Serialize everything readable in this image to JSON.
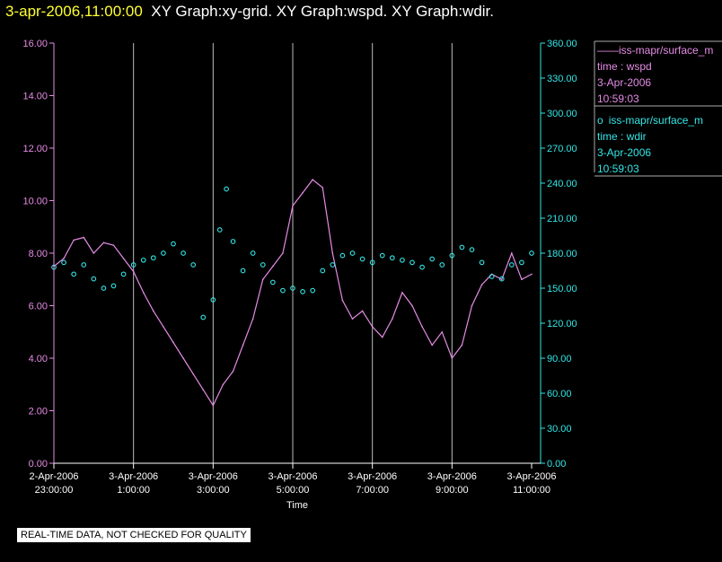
{
  "header": {
    "timestamp": "3-apr-2006,11:00:00",
    "graphs": "XY Graph:xy-grid.  XY Graph:wspd.  XY Graph:wdir."
  },
  "colors": {
    "wspd": "#e58be5",
    "wdir": "#33e6e6",
    "grid": "#bbbbbb",
    "axis_text": "#ffffff",
    "title_time": "#ffff33"
  },
  "legend": [
    {
      "symbol": "——",
      "series": "iss-mapr/surface_m",
      "line1": "time : wspd",
      "line2": "3-Apr-2006",
      "line3": "10:59:03",
      "color": "#e58be5"
    },
    {
      "symbol": "o",
      "series": "iss-mapr/surface_m",
      "line1": "time : wdir",
      "line2": "3-Apr-2006",
      "line3": "10:59:03",
      "color": "#33e6e6"
    }
  ],
  "footer_note": "REAL-TIME DATA, NOT CHECKED FOR QUALITY",
  "chart_data": {
    "type": "line",
    "xlabel": "Time",
    "xlim": [
      "2006-04-02 23:00",
      "2006-04-03 11:00"
    ],
    "x_tick_labels": [
      [
        "2-Apr-2006",
        "23:00:00"
      ],
      [
        "3-Apr-2006",
        "1:00:00"
      ],
      [
        "3-Apr-2006",
        "3:00:00"
      ],
      [
        "3-Apr-2006",
        "5:00:00"
      ],
      [
        "3-Apr-2006",
        "7:00:00"
      ],
      [
        "3-Apr-2006",
        "9:00:00"
      ],
      [
        "3-Apr-2006",
        "11:00:00"
      ]
    ],
    "y_left": {
      "ylim": [
        0,
        16
      ],
      "ticks": [
        "0.00",
        "2.00",
        "4.00",
        "6.00",
        "8.00",
        "10.00",
        "12.00",
        "14.00",
        "16.00"
      ]
    },
    "y_right": {
      "ylim": [
        0,
        360
      ],
      "ticks": [
        "0.00",
        "30.00",
        "60.00",
        "90.00",
        "120.00",
        "150.00",
        "180.00",
        "210.00",
        "240.00",
        "270.00",
        "300.00",
        "330.00",
        "360.00"
      ]
    },
    "grid": "vertical",
    "legend_position": "right",
    "series": [
      {
        "name": "wspd",
        "style": "line",
        "axis": "left",
        "x": [
          "2006-04-02 23:00",
          "2006-04-02 23:15",
          "2006-04-02 23:30",
          "2006-04-02 23:45",
          "2006-04-03 00:00",
          "2006-04-03 00:15",
          "2006-04-03 00:30",
          "2006-04-03 00:45",
          "2006-04-03 01:00",
          "2006-04-03 01:15",
          "2006-04-03 01:30",
          "2006-04-03 01:45",
          "2006-04-03 02:00",
          "2006-04-03 02:15",
          "2006-04-03 02:30",
          "2006-04-03 02:45",
          "2006-04-03 03:00",
          "2006-04-03 03:15",
          "2006-04-03 03:30",
          "2006-04-03 03:45",
          "2006-04-03 04:00",
          "2006-04-03 04:15",
          "2006-04-03 04:30",
          "2006-04-03 04:45",
          "2006-04-03 05:00",
          "2006-04-03 05:15",
          "2006-04-03 05:30",
          "2006-04-03 05:45",
          "2006-04-03 06:00",
          "2006-04-03 06:15",
          "2006-04-03 06:30",
          "2006-04-03 06:45",
          "2006-04-03 07:00",
          "2006-04-03 07:15",
          "2006-04-03 07:30",
          "2006-04-03 07:45",
          "2006-04-03 08:00",
          "2006-04-03 08:15",
          "2006-04-03 08:30",
          "2006-04-03 08:45",
          "2006-04-03 09:00",
          "2006-04-03 09:15",
          "2006-04-03 09:30",
          "2006-04-03 09:45",
          "2006-04-03 10:00",
          "2006-04-03 10:15",
          "2006-04-03 10:30",
          "2006-04-03 10:45",
          "2006-04-03 11:00"
        ],
        "values": [
          7.5,
          7.8,
          8.5,
          8.6,
          8.0,
          8.4,
          8.3,
          7.8,
          7.3,
          6.5,
          5.8,
          5.2,
          4.6,
          4.0,
          3.4,
          2.8,
          2.2,
          3.0,
          3.5,
          4.5,
          5.5,
          7.0,
          7.5,
          8.0,
          9.8,
          10.3,
          10.8,
          10.5,
          8.0,
          6.2,
          5.5,
          5.8,
          5.2,
          4.8,
          5.5,
          6.5,
          6.0,
          5.2,
          4.5,
          5.0,
          4.0,
          4.5,
          6.0,
          6.8,
          7.2,
          7.0,
          8.0,
          7.0,
          7.2
        ]
      },
      {
        "name": "wdir",
        "style": "points",
        "axis": "right",
        "x": [
          "2006-04-02 23:00",
          "2006-04-02 23:15",
          "2006-04-02 23:30",
          "2006-04-02 23:45",
          "2006-04-03 00:00",
          "2006-04-03 00:15",
          "2006-04-03 00:30",
          "2006-04-03 00:45",
          "2006-04-03 01:00",
          "2006-04-03 01:15",
          "2006-04-03 01:30",
          "2006-04-03 01:45",
          "2006-04-03 02:00",
          "2006-04-03 02:15",
          "2006-04-03 02:30",
          "2006-04-03 02:45",
          "2006-04-03 03:00",
          "2006-04-03 03:10",
          "2006-04-03 03:20",
          "2006-04-03 03:30",
          "2006-04-03 03:45",
          "2006-04-03 04:00",
          "2006-04-03 04:15",
          "2006-04-03 04:30",
          "2006-04-03 04:45",
          "2006-04-03 05:00",
          "2006-04-03 05:15",
          "2006-04-03 05:30",
          "2006-04-03 05:45",
          "2006-04-03 06:00",
          "2006-04-03 06:15",
          "2006-04-03 06:30",
          "2006-04-03 06:45",
          "2006-04-03 07:00",
          "2006-04-03 07:15",
          "2006-04-03 07:30",
          "2006-04-03 07:45",
          "2006-04-03 08:00",
          "2006-04-03 08:15",
          "2006-04-03 08:30",
          "2006-04-03 08:45",
          "2006-04-03 09:00",
          "2006-04-03 09:15",
          "2006-04-03 09:30",
          "2006-04-03 09:45",
          "2006-04-03 10:00",
          "2006-04-03 10:15",
          "2006-04-03 10:30",
          "2006-04-03 10:45",
          "2006-04-03 11:00"
        ],
        "values": [
          168,
          172,
          162,
          170,
          158,
          150,
          152,
          162,
          170,
          174,
          176,
          180,
          188,
          180,
          170,
          125,
          140,
          200,
          235,
          190,
          165,
          180,
          170,
          155,
          148,
          150,
          147,
          148,
          165,
          170,
          178,
          180,
          175,
          172,
          178,
          176,
          174,
          172,
          168,
          175,
          170,
          178,
          185,
          183,
          172,
          160,
          158,
          170,
          172,
          180
        ]
      }
    ]
  }
}
